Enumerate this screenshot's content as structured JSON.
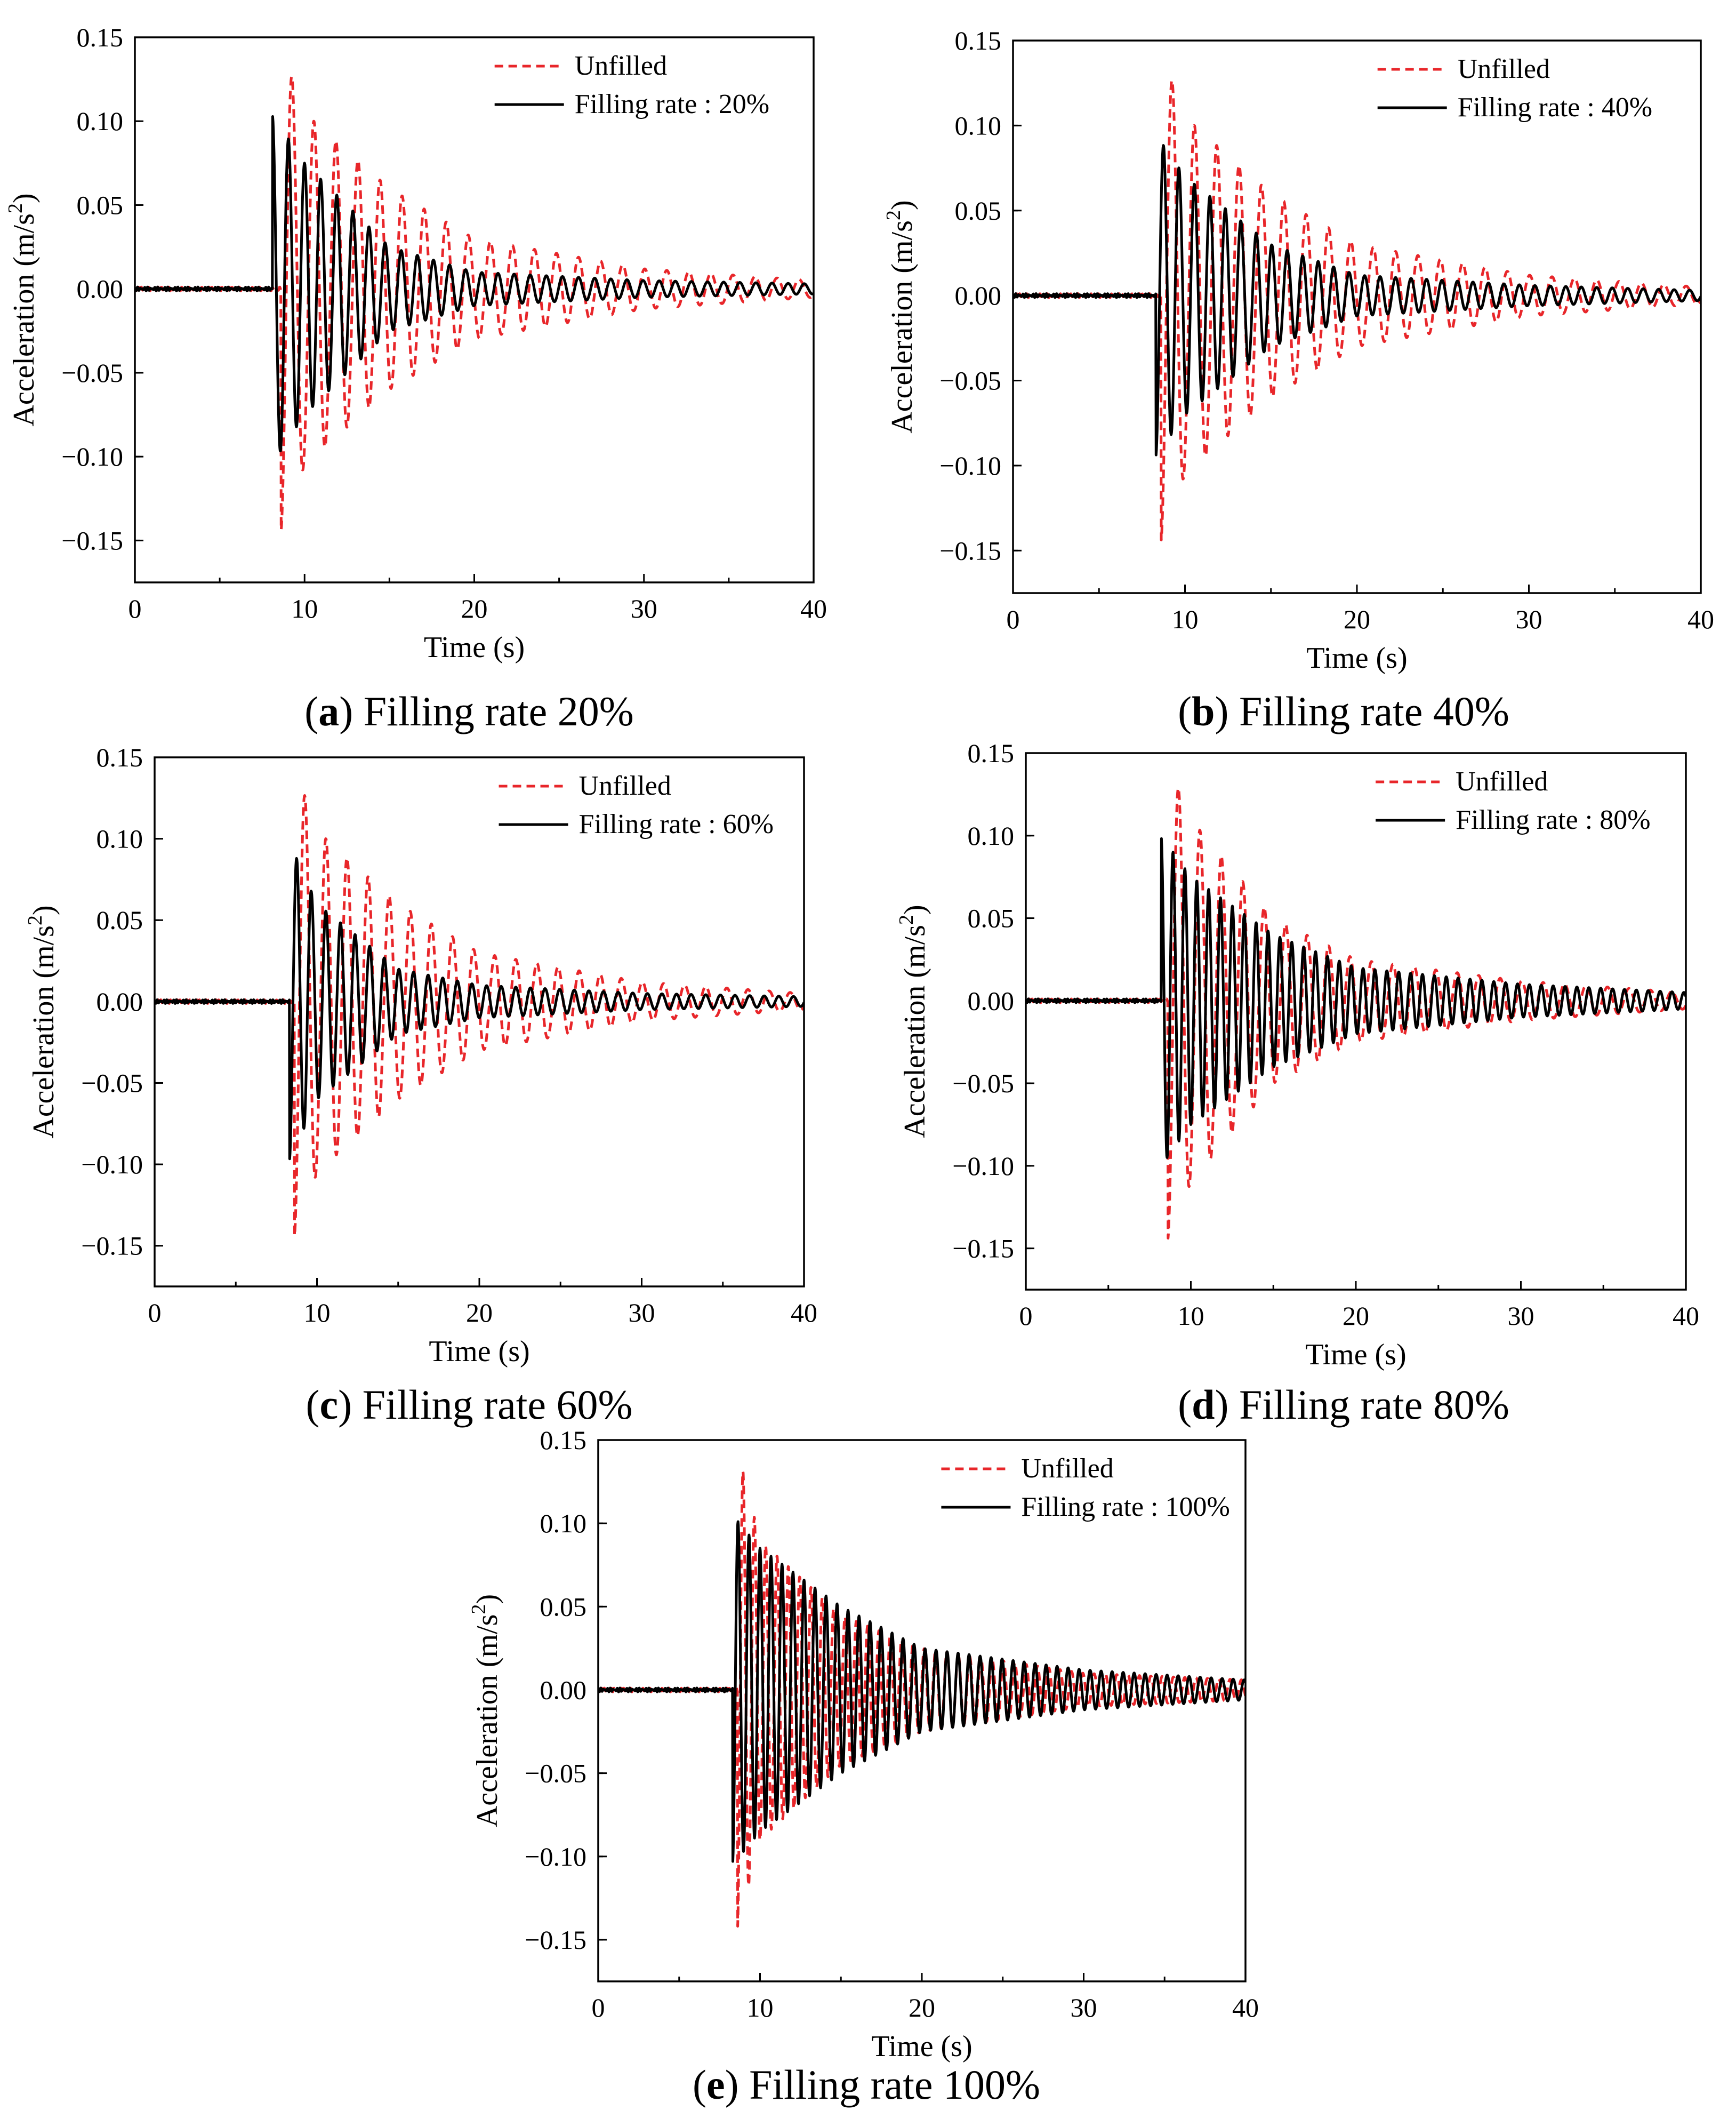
{
  "chart_data": [
    {
      "type": "line",
      "panel_label": "a",
      "caption": "Filling rate 20%",
      "xlabel": "Time (s)",
      "ylabel": "Acceleration (m/s2)",
      "xlim": [
        0,
        40
      ],
      "ylim": [
        -0.175,
        0.15
      ],
      "x_ticks": [
        "0",
        "10",
        "20",
        "30",
        "40"
      ],
      "y_ticks": [
        "-0.15",
        "-0.10",
        "-0.05",
        "0.00",
        "0.05",
        "0.10",
        "0.15"
      ],
      "legend_location": "top-right",
      "series": [
        {
          "name": "Unfilled",
          "color": "#e8262a",
          "style": "dashed",
          "onset": 8.6,
          "first_peak": -0.145,
          "period": 1.3,
          "decay_time": 7.5,
          "envelope": [
            [
              8.6,
              0.145
            ],
            [
              10,
              0.105
            ],
            [
              15,
              0.06
            ],
            [
              20,
              0.03
            ],
            [
              30,
              0.012
            ],
            [
              40,
              0.005
            ]
          ]
        },
        {
          "name": "Filling rate : 20%",
          "color": "#000000",
          "style": "solid",
          "onset": 8.1,
          "first_peak": 0.104,
          "period": 0.95,
          "decay_time": 4.5,
          "envelope": [
            [
              8.1,
              0.104
            ],
            [
              10,
              0.075
            ],
            [
              15,
              0.025
            ],
            [
              20,
              0.01
            ],
            [
              30,
              0.005
            ],
            [
              40,
              0.003
            ]
          ]
        }
      ]
    },
    {
      "type": "line",
      "panel_label": "b",
      "caption": "Filling rate 40%",
      "xlabel": "Time (s)",
      "ylabel": "Acceleration (m/s2)",
      "xlim": [
        0,
        40
      ],
      "ylim": [
        -0.175,
        0.15
      ],
      "x_ticks": [
        "0",
        "10",
        "20",
        "30",
        "40"
      ],
      "y_ticks": [
        "-0.15",
        "-0.10",
        "-0.05",
        "0.00",
        "0.05",
        "0.10",
        "0.15"
      ],
      "legend_location": "top-right",
      "series": [
        {
          "name": "Unfilled",
          "color": "#e8262a",
          "style": "dashed",
          "onset": 8.6,
          "first_peak": -0.145,
          "period": 1.3,
          "decay_time": 7.5,
          "envelope": [
            [
              8.6,
              0.145
            ],
            [
              10,
              0.105
            ],
            [
              15,
              0.06
            ],
            [
              20,
              0.03
            ],
            [
              30,
              0.012
            ],
            [
              40,
              0.005
            ]
          ]
        },
        {
          "name": "Filling rate : 40%",
          "color": "#000000",
          "style": "solid",
          "onset": 8.3,
          "first_peak": -0.095,
          "period": 0.9,
          "decay_time": 5.5,
          "envelope": [
            [
              8.3,
              0.095
            ],
            [
              10,
              0.07
            ],
            [
              15,
              0.03
            ],
            [
              20,
              0.012
            ],
            [
              30,
              0.006
            ],
            [
              40,
              0.003
            ]
          ]
        }
      ]
    },
    {
      "type": "line",
      "panel_label": "c",
      "caption": "Filling rate 60%",
      "xlabel": "Time (s)",
      "ylabel": "Acceleration (m/s2)",
      "xlim": [
        0,
        40
      ],
      "ylim": [
        -0.175,
        0.15
      ],
      "x_ticks": [
        "0",
        "10",
        "20",
        "30",
        "40"
      ],
      "y_ticks": [
        "-0.15",
        "-0.10",
        "-0.05",
        "0.00",
        "0.05",
        "0.10",
        "0.15"
      ],
      "legend_location": "top-right",
      "series": [
        {
          "name": "Unfilled",
          "color": "#e8262a",
          "style": "dashed",
          "onset": 8.6,
          "first_peak": -0.145,
          "period": 1.3,
          "decay_time": 7.5,
          "envelope": [
            [
              8.6,
              0.145
            ],
            [
              10,
              0.105
            ],
            [
              15,
              0.06
            ],
            [
              20,
              0.03
            ],
            [
              30,
              0.012
            ],
            [
              40,
              0.005
            ]
          ]
        },
        {
          "name": "Filling rate : 60%",
          "color": "#000000",
          "style": "solid",
          "onset": 8.3,
          "first_peak": -0.098,
          "period": 0.9,
          "decay_time": 6,
          "envelope": [
            [
              8.3,
              0.098
            ],
            [
              10,
              0.06
            ],
            [
              15,
              0.02
            ],
            [
              20,
              0.01
            ],
            [
              30,
              0.005
            ],
            [
              40,
              0.003
            ]
          ]
        }
      ]
    },
    {
      "type": "line",
      "panel_label": "d",
      "caption": "Filling rate 80%",
      "xlabel": "Time (s)",
      "ylabel": "Acceleration (m/s2)",
      "xlim": [
        0,
        40
      ],
      "ylim": [
        -0.175,
        0.15
      ],
      "x_ticks": [
        "0",
        "10",
        "20",
        "30",
        "40"
      ],
      "y_ticks": [
        "-0.15",
        "-0.10",
        "-0.05",
        "0.00",
        "0.05",
        "0.10",
        "0.15"
      ],
      "legend_location": "top-right",
      "series": [
        {
          "name": "Unfilled",
          "color": "#e8262a",
          "style": "dashed",
          "onset": 8.6,
          "first_peak": -0.145,
          "period": 1.3,
          "decay_time": 7.5,
          "envelope": [
            [
              8.6,
              0.145
            ],
            [
              10,
              0.11
            ],
            [
              15,
              0.05
            ],
            [
              20,
              0.025
            ],
            [
              30,
              0.012
            ],
            [
              40,
              0.005
            ]
          ]
        },
        {
          "name": "Filling rate : 80%",
          "color": "#000000",
          "style": "solid",
          "onset": 8.2,
          "first_peak": 0.098,
          "period": 0.72,
          "decay_time": 12,
          "envelope": [
            [
              8.2,
              0.1
            ],
            [
              10,
              0.075
            ],
            [
              15,
              0.04
            ],
            [
              20,
              0.02
            ],
            [
              30,
              0.01
            ],
            [
              40,
              0.005
            ]
          ]
        }
      ]
    },
    {
      "type": "line",
      "panel_label": "e",
      "caption": "Filling rate 100%",
      "xlabel": "Time (s)",
      "ylabel": "Acceleration (m/s2)",
      "xlim": [
        0,
        40
      ],
      "ylim": [
        -0.175,
        0.15
      ],
      "x_ticks": [
        "0",
        "10",
        "20",
        "30",
        "40"
      ],
      "y_ticks": [
        "-0.15",
        "-0.10",
        "-0.05",
        "0.00",
        "0.05",
        "0.10",
        "0.15"
      ],
      "legend_location": "top-right",
      "series": [
        {
          "name": "Unfilled",
          "color": "#e8262a",
          "style": "dashed",
          "onset": 8.6,
          "first_peak": -0.145,
          "period": 0.7,
          "decay_time": 9,
          "envelope": [
            [
              8.6,
              0.145
            ],
            [
              10,
              0.09
            ],
            [
              15,
              0.045
            ],
            [
              20,
              0.025
            ],
            [
              30,
              0.01
            ],
            [
              40,
              0.006
            ]
          ]
        },
        {
          "name": "Filling rate : 100%",
          "color": "#000000",
          "style": "solid",
          "onset": 8.3,
          "first_peak": -0.108,
          "period": 0.68,
          "decay_time": 12,
          "envelope": [
            [
              8.3,
              0.105
            ],
            [
              10,
              0.085
            ],
            [
              15,
              0.05
            ],
            [
              20,
              0.025
            ],
            [
              30,
              0.012
            ],
            [
              40,
              0.006
            ]
          ]
        }
      ]
    }
  ]
}
